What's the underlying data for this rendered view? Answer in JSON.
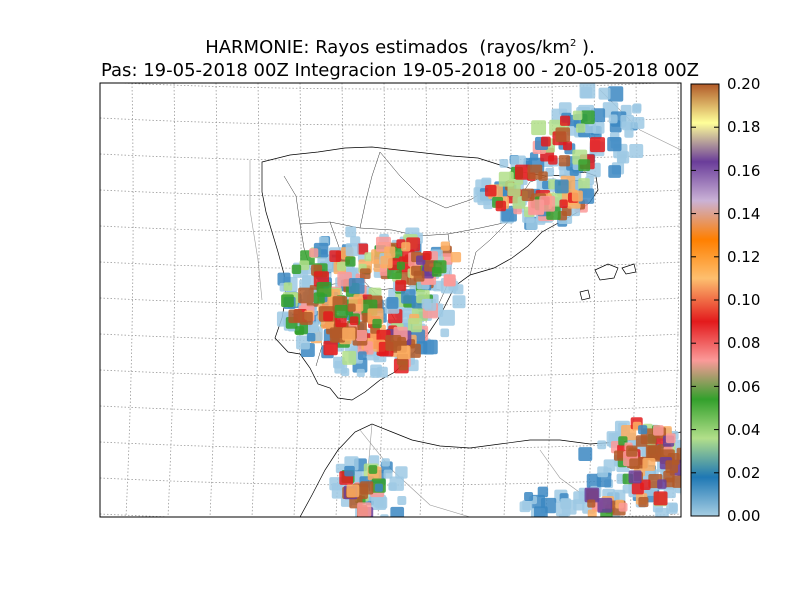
{
  "title": {
    "line1_prefix": "HARMONIE: Rayos estimados  (rayos/km",
    "line1_sup": "2",
    "line1_suffix": " ).",
    "line2": "Pas: 19-05-2018 00Z Integracion 19-05-2018 00 - 20-05-2018 00Z"
  },
  "colorbar": {
    "min": 0.0,
    "max": 0.2,
    "tick_labels": [
      "0.00",
      "0.02",
      "0.04",
      "0.06",
      "0.08",
      "0.10",
      "0.12",
      "0.14",
      "0.16",
      "0.18",
      "0.20"
    ],
    "colors": [
      "#a6cee3",
      "#1f78b4",
      "#b2df8a",
      "#33a02c",
      "#fb9a99",
      "#e31a1c",
      "#fdbf6f",
      "#ff7f00",
      "#cab2d6",
      "#6a3d9a",
      "#ffff99",
      "#b15928"
    ]
  },
  "map": {
    "region": "Iberian Peninsula and northern Morocco",
    "grid": "dotted graticule",
    "field_colors": {
      "low": "#9ec9e4",
      "mid_blue": "#3b87c2",
      "green_light": "#b2df8a",
      "green": "#33a02c",
      "pink": "#fb9a99",
      "red": "#e31a1c",
      "orange": "#fdae61",
      "brown": "#b15928",
      "purple": "#6a3d9a"
    }
  }
}
